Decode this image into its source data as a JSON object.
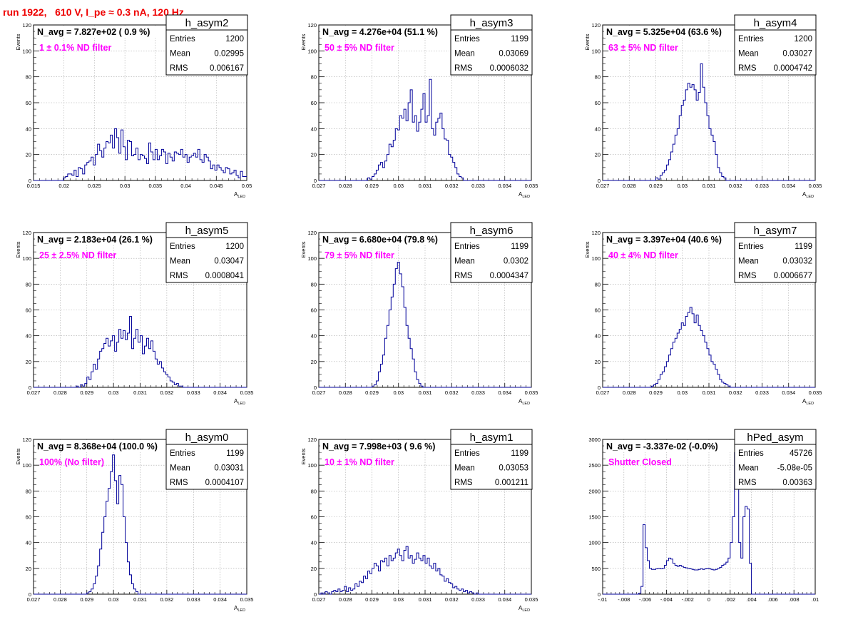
{
  "run_title": "run 1922,   610 V, I_pe ≈ 0.3 nA, 120 Hz",
  "colors": {
    "histogram_line": "#000099",
    "annotation_magenta": "#ff00ff",
    "title_red": "#ee0000",
    "grid": "#aaaaaa"
  },
  "chart_data": [
    {
      "type": "histogram",
      "name": "h_asym2",
      "nav_label": "N_avg = 7.827e+02 ( 0.9 %)",
      "filter_label": "1 ± 0.1% ND filter",
      "stats": {
        "Entries": "1200",
        "Mean": "0.02995",
        "RMS": "0.006167"
      },
      "xlim": [
        0.015,
        0.05
      ],
      "ylim": [
        0,
        120
      ],
      "xticks": [
        0.015,
        0.02,
        0.025,
        0.03,
        0.035,
        0.04,
        0.045,
        0.05
      ],
      "yticks": [
        0,
        20,
        40,
        60,
        80,
        100,
        120
      ],
      "xlabel": "A",
      "xlabel_sub": "LED",
      "ylabel": "Events",
      "grid": true,
      "bin_start": 0.015,
      "bin_width": 0.00035,
      "values": [
        0,
        0,
        0,
        0,
        0,
        0,
        0,
        0,
        0,
        0,
        0,
        0,
        0,
        0,
        2,
        3,
        5,
        5,
        4,
        8,
        3,
        10,
        9,
        5,
        12,
        14,
        15,
        18,
        12,
        20,
        28,
        23,
        18,
        25,
        30,
        29,
        35,
        25,
        40,
        33,
        21,
        39,
        26,
        16,
        31,
        30,
        19,
        20,
        25,
        16,
        20,
        19,
        17,
        13,
        29,
        22,
        16,
        24,
        16,
        19,
        24,
        22,
        13,
        21,
        18,
        15,
        22,
        21,
        20,
        24,
        18,
        20,
        14,
        18,
        19,
        21,
        18,
        24,
        16,
        14,
        20,
        18,
        15,
        9,
        12,
        8,
        12,
        10,
        8,
        6,
        10,
        9,
        5,
        6,
        8,
        4,
        2,
        7,
        3,
        3
      ]
    },
    {
      "type": "histogram",
      "name": "h_asym3",
      "nav_label": "N_avg = 4.276e+04 (51.1 %)",
      "filter_label": "50 ± 5% ND filter",
      "stats": {
        "Entries": "1199",
        "Mean": "0.03069",
        "RMS": "0.0006032"
      },
      "xlim": [
        0.027,
        0.035
      ],
      "ylim": [
        0,
        120
      ],
      "xticks": [
        0.027,
        0.028,
        0.029,
        0.03,
        0.031,
        0.032,
        0.033,
        0.034,
        0.035
      ],
      "yticks": [
        0,
        20,
        40,
        60,
        80,
        100,
        120
      ],
      "xlabel": "A",
      "xlabel_sub": "LED",
      "ylabel": "Events",
      "grid": true,
      "bin_start": 0.027,
      "bin_width": 8e-05,
      "values": [
        0,
        0,
        0,
        0,
        0,
        0,
        0,
        0,
        0,
        0,
        0,
        0,
        0,
        0,
        0,
        0,
        0,
        0,
        0,
        0,
        0,
        0,
        0,
        2,
        1,
        3,
        5,
        8,
        12,
        14,
        10,
        15,
        20,
        28,
        26,
        31,
        40,
        39,
        50,
        48,
        55,
        46,
        60,
        70,
        45,
        50,
        38,
        45,
        55,
        67,
        45,
        50,
        78,
        40,
        35,
        45,
        48,
        52,
        40,
        32,
        31,
        20,
        18,
        14,
        10,
        5,
        3,
        2,
        0,
        0,
        0,
        0,
        0,
        0,
        0,
        0,
        0,
        0,
        0,
        0,
        0,
        0,
        0,
        0,
        0,
        0,
        0,
        0,
        0,
        0,
        0,
        0,
        0,
        0,
        0,
        0,
        0,
        0,
        0,
        0
      ]
    },
    {
      "type": "histogram",
      "name": "h_asym4",
      "nav_label": "N_avg = 5.325e+04 (63.6 %)",
      "filter_label": "63 ± 5% ND filter",
      "stats": {
        "Entries": "1200",
        "Mean": "0.03027",
        "RMS": "0.0004742"
      },
      "xlim": [
        0.027,
        0.035
      ],
      "ylim": [
        0,
        120
      ],
      "xticks": [
        0.027,
        0.028,
        0.029,
        0.03,
        0.031,
        0.032,
        0.033,
        0.034,
        0.035
      ],
      "yticks": [
        0,
        20,
        40,
        60,
        80,
        100,
        120
      ],
      "xlabel": "A",
      "xlabel_sub": "LED",
      "ylabel": "Events",
      "grid": true,
      "bin_start": 0.027,
      "bin_width": 8e-05,
      "values": [
        0,
        0,
        0,
        0,
        0,
        0,
        0,
        0,
        0,
        0,
        0,
        0,
        0,
        0,
        0,
        0,
        0,
        0,
        0,
        0,
        0,
        0,
        0,
        0,
        0,
        2,
        1,
        4,
        6,
        8,
        12,
        16,
        22,
        28,
        35,
        40,
        50,
        58,
        62,
        70,
        75,
        72,
        74,
        70,
        62,
        68,
        90,
        72,
        60,
        50,
        40,
        35,
        30,
        20,
        10,
        6,
        3,
        2,
        0,
        0,
        0,
        0,
        0,
        0,
        0,
        0,
        0,
        0,
        0,
        0,
        0,
        0,
        0,
        0,
        0,
        0,
        0,
        0,
        0,
        0,
        0,
        0,
        0,
        0,
        0,
        0,
        0,
        0,
        0,
        0,
        0,
        0,
        0,
        0,
        0,
        0,
        0,
        0,
        0,
        0
      ]
    },
    {
      "type": "histogram",
      "name": "h_asym5",
      "nav_label": "N_avg = 2.183e+04 (26.1 %)",
      "filter_label": "25 ± 2.5% ND filter",
      "stats": {
        "Entries": "1200",
        "Mean": "0.03047",
        "RMS": "0.0008041"
      },
      "xlim": [
        0.027,
        0.035
      ],
      "ylim": [
        0,
        120
      ],
      "xticks": [
        0.027,
        0.028,
        0.029,
        0.03,
        0.031,
        0.032,
        0.033,
        0.034,
        0.035
      ],
      "yticks": [
        0,
        20,
        40,
        60,
        80,
        100,
        120
      ],
      "xlabel": "A",
      "xlabel_sub": "LED",
      "ylabel": "Events",
      "grid": true,
      "bin_start": 0.027,
      "bin_width": 8e-05,
      "values": [
        0,
        0,
        0,
        0,
        0,
        0,
        0,
        0,
        0,
        0,
        0,
        0,
        0,
        0,
        0,
        0,
        0,
        0,
        0,
        0,
        1,
        0,
        2,
        1,
        3,
        8,
        6,
        12,
        18,
        14,
        22,
        28,
        30,
        34,
        38,
        32,
        36,
        40,
        28,
        35,
        45,
        38,
        44,
        37,
        42,
        55,
        30,
        38,
        45,
        35,
        40,
        26,
        32,
        38,
        30,
        36,
        28,
        22,
        18,
        20,
        15,
        12,
        10,
        8,
        5,
        4,
        2,
        3,
        1,
        1,
        0,
        0,
        0,
        0,
        0,
        0,
        0,
        0,
        0,
        0,
        0,
        0,
        0,
        0,
        0,
        0,
        0,
        0,
        0,
        0,
        0,
        0,
        0,
        0,
        0,
        0,
        0,
        0,
        0,
        0
      ]
    },
    {
      "type": "histogram",
      "name": "h_asym6",
      "nav_label": "N_avg = 6.680e+04 (79.8 %)",
      "filter_label": "79 ± 5% ND filter",
      "stats": {
        "Entries": "1199",
        "Mean": "0.0302",
        "RMS": "0.0004347"
      },
      "xlim": [
        0.027,
        0.035
      ],
      "ylim": [
        0,
        120
      ],
      "xticks": [
        0.027,
        0.028,
        0.029,
        0.03,
        0.031,
        0.032,
        0.033,
        0.034,
        0.035
      ],
      "yticks": [
        0,
        20,
        40,
        60,
        80,
        100,
        120
      ],
      "xlabel": "A",
      "xlabel_sub": "LED",
      "ylabel": "Events",
      "grid": true,
      "bin_start": 0.027,
      "bin_width": 8e-05,
      "values": [
        0,
        0,
        0,
        0,
        0,
        0,
        0,
        0,
        0,
        0,
        0,
        0,
        0,
        0,
        0,
        0,
        0,
        0,
        0,
        0,
        0,
        0,
        0,
        0,
        0,
        1,
        2,
        5,
        12,
        18,
        25,
        38,
        48,
        60,
        70,
        80,
        92,
        97,
        88,
        78,
        62,
        48,
        38,
        30,
        22,
        12,
        6,
        3,
        1,
        0,
        0,
        0,
        0,
        0,
        0,
        0,
        0,
        0,
        0,
        0,
        0,
        0,
        0,
        0,
        0,
        0,
        0,
        0,
        0,
        0,
        0,
        0,
        0,
        0,
        0,
        0,
        0,
        0,
        0,
        0,
        0,
        0,
        0,
        0,
        0,
        0,
        0,
        0,
        0,
        0,
        0,
        0,
        0,
        0,
        0,
        0,
        0,
        0,
        0,
        0
      ]
    },
    {
      "type": "histogram",
      "name": "h_asym7",
      "nav_label": "N_avg = 3.397e+04 (40.6 %)",
      "filter_label": "40 ± 4% ND filter",
      "stats": {
        "Entries": "1199",
        "Mean": "0.03032",
        "RMS": "0.0006677"
      },
      "xlim": [
        0.027,
        0.035
      ],
      "ylim": [
        0,
        120
      ],
      "xticks": [
        0.027,
        0.028,
        0.029,
        0.03,
        0.031,
        0.032,
        0.033,
        0.034,
        0.035
      ],
      "yticks": [
        0,
        20,
        40,
        60,
        80,
        100,
        120
      ],
      "xlabel": "A",
      "xlabel_sub": "LED",
      "ylabel": "Events",
      "grid": true,
      "bin_start": 0.027,
      "bin_width": 8e-05,
      "values": [
        0,
        0,
        0,
        0,
        0,
        0,
        0,
        0,
        0,
        0,
        0,
        0,
        0,
        0,
        0,
        0,
        0,
        0,
        0,
        0,
        0,
        0,
        0,
        1,
        2,
        3,
        6,
        10,
        12,
        16,
        20,
        25,
        30,
        35,
        38,
        42,
        45,
        50,
        48,
        55,
        58,
        62,
        57,
        50,
        56,
        48,
        44,
        40,
        35,
        30,
        25,
        20,
        18,
        14,
        10,
        6,
        4,
        3,
        2,
        1,
        0,
        0,
        0,
        0,
        0,
        0,
        0,
        0,
        0,
        0,
        0,
        0,
        0,
        0,
        0,
        0,
        0,
        0,
        0,
        0,
        0,
        0,
        0,
        0,
        0,
        0,
        0,
        0,
        0,
        0,
        0,
        0,
        0,
        0,
        0,
        0,
        0,
        0,
        0,
        0
      ]
    },
    {
      "type": "histogram",
      "name": "h_asym0",
      "nav_label": "N_avg = 8.368e+04 (100.0 %)",
      "filter_label": "100% (No filter)",
      "stats": {
        "Entries": "1199",
        "Mean": "0.03031",
        "RMS": "0.0004107"
      },
      "xlim": [
        0.027,
        0.035
      ],
      "ylim": [
        0,
        120
      ],
      "xticks": [
        0.027,
        0.028,
        0.029,
        0.03,
        0.031,
        0.032,
        0.033,
        0.034,
        0.035
      ],
      "yticks": [
        0,
        20,
        40,
        60,
        80,
        100,
        120
      ],
      "xlabel": "A",
      "xlabel_sub": "LED",
      "ylabel": "Events",
      "grid": true,
      "bin_start": 0.027,
      "bin_width": 8e-05,
      "values": [
        0,
        0,
        0,
        0,
        0,
        0,
        0,
        0,
        0,
        0,
        0,
        0,
        0,
        0,
        0,
        0,
        0,
        0,
        0,
        0,
        0,
        0,
        0,
        0,
        0,
        1,
        2,
        4,
        8,
        14,
        22,
        35,
        48,
        60,
        72,
        82,
        95,
        108,
        88,
        70,
        92,
        85,
        60,
        40,
        25,
        15,
        8,
        4,
        2,
        0,
        0,
        0,
        0,
        0,
        0,
        0,
        0,
        0,
        0,
        0,
        0,
        0,
        0,
        0,
        0,
        0,
        0,
        0,
        0,
        0,
        0,
        0,
        0,
        0,
        0,
        0,
        0,
        0,
        0,
        0,
        0,
        0,
        0,
        0,
        0,
        0,
        0,
        0,
        0,
        0,
        0,
        0,
        0,
        0,
        0,
        0,
        0,
        0,
        0,
        0
      ]
    },
    {
      "type": "histogram",
      "name": "h_asym1",
      "nav_label": "N_avg = 7.998e+03 ( 9.6 %)",
      "filter_label": "10 ± 1% ND filter",
      "stats": {
        "Entries": "1199",
        "Mean": "0.03053",
        "RMS": "0.001211"
      },
      "xlim": [
        0.027,
        0.035
      ],
      "ylim": [
        0,
        120
      ],
      "xticks": [
        0.027,
        0.028,
        0.029,
        0.03,
        0.031,
        0.032,
        0.033,
        0.034,
        0.035
      ],
      "yticks": [
        0,
        20,
        40,
        60,
        80,
        100,
        120
      ],
      "xlabel": "A",
      "xlabel_sub": "LED",
      "ylabel": "Events",
      "grid": true,
      "bin_start": 0.027,
      "bin_width": 8e-05,
      "values": [
        0,
        1,
        0,
        2,
        1,
        0,
        2,
        3,
        2,
        4,
        2,
        3,
        6,
        2,
        5,
        3,
        4,
        8,
        6,
        10,
        9,
        14,
        12,
        18,
        16,
        20,
        24,
        22,
        18,
        26,
        25,
        28,
        22,
        30,
        26,
        28,
        32,
        35,
        30,
        26,
        34,
        37,
        28,
        30,
        24,
        27,
        32,
        28,
        26,
        30,
        24,
        28,
        22,
        20,
        24,
        18,
        20,
        15,
        14,
        10,
        12,
        9,
        8,
        5,
        6,
        4,
        3,
        4,
        2,
        3,
        1,
        2,
        1,
        0,
        1,
        0,
        0,
        0,
        0,
        0,
        0,
        0,
        0,
        0,
        0,
        0,
        0,
        0,
        0,
        0,
        0,
        0,
        0,
        0,
        0,
        0,
        0,
        0,
        0,
        0
      ]
    },
    {
      "type": "histogram",
      "name": "hPed_asym",
      "nav_label": "N_avg = -3.337e-02 (-0.0%)",
      "filter_label": "Shutter Closed",
      "stats": {
        "Entries": "45726",
        "Mean": "-5.08e-05",
        "RMS": "0.00363"
      },
      "xlim": [
        -0.01,
        0.01
      ],
      "ylim": [
        0,
        3000
      ],
      "xticks": [
        -0.01,
        -0.008,
        -0.006,
        -0.004,
        -0.002,
        0,
        0.002,
        0.004,
        0.006,
        0.008,
        0.01
      ],
      "yticks": [
        0,
        500,
        1000,
        1500,
        2000,
        2500,
        3000
      ],
      "xlabel": "",
      "xlabel_sub": "",
      "ylabel": "",
      "grid": true,
      "bin_start": -0.01,
      "bin_width": 0.0002,
      "values": [
        0,
        0,
        0,
        0,
        0,
        0,
        0,
        0,
        0,
        0,
        0,
        0,
        0,
        0,
        0,
        0,
        0,
        20,
        150,
        1350,
        900,
        650,
        500,
        480,
        480,
        490,
        500,
        490,
        500,
        560,
        650,
        700,
        680,
        600,
        560,
        540,
        560,
        540,
        520,
        510,
        500,
        490,
        480,
        470,
        470,
        480,
        490,
        480,
        490,
        500,
        490,
        480,
        470,
        480,
        500,
        520,
        560,
        580,
        620,
        700,
        1000,
        1500,
        2900,
        2500,
        1000,
        700,
        1500,
        1700,
        1650,
        600,
        0,
        0,
        0,
        0,
        0,
        0,
        0,
        0,
        0,
        0,
        0,
        0,
        0,
        0,
        0,
        0,
        0,
        0,
        0,
        0,
        0,
        0,
        0,
        0,
        0,
        0,
        0,
        0,
        0,
        0
      ]
    }
  ]
}
